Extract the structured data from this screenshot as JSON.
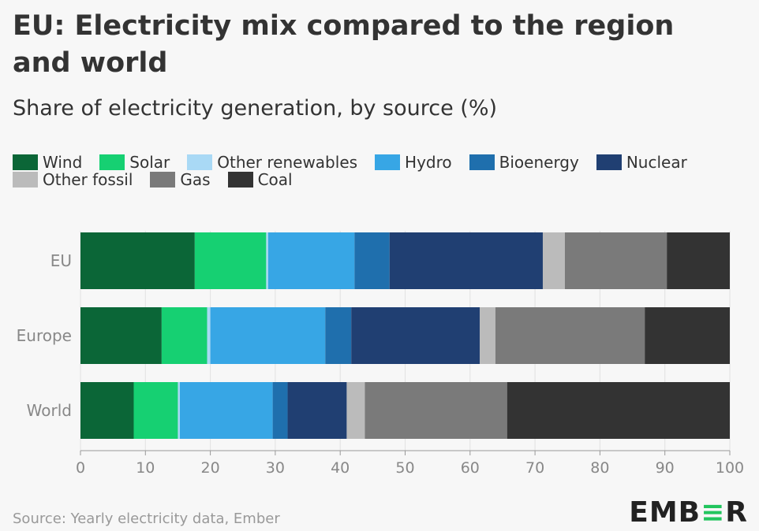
{
  "title": "EU: Electricity mix compared to the region and world",
  "subtitle": "Share of electricity generation, by source (%)",
  "source": "Source: Yearly electricity data, Ember",
  "logo": {
    "pre": "EMB",
    "accent": "≡",
    "post": "R"
  },
  "chart_data": {
    "type": "bar",
    "orientation": "horizontal",
    "stacked": true,
    "categories": [
      "EU",
      "Europe",
      "World"
    ],
    "series": [
      {
        "name": "Wind",
        "color": "#0b6637",
        "values": [
          17.6,
          12.5,
          8.2
        ]
      },
      {
        "name": "Solar",
        "color": "#16d072",
        "values": [
          11.0,
          7.0,
          6.8
        ]
      },
      {
        "name": "Other renewables",
        "color": "#a9d9f5",
        "values": [
          0.3,
          0.5,
          0.3
        ]
      },
      {
        "name": "Hydro",
        "color": "#37a6e5",
        "values": [
          13.3,
          17.7,
          14.3
        ]
      },
      {
        "name": "Bioenergy",
        "color": "#1f6fad",
        "values": [
          5.4,
          4.0,
          2.3
        ]
      },
      {
        "name": "Nuclear",
        "color": "#203f72",
        "values": [
          23.6,
          19.8,
          9.1
        ]
      },
      {
        "name": "Other fossil",
        "color": "#bbbbbb",
        "values": [
          3.4,
          2.4,
          2.8
        ]
      },
      {
        "name": "Gas",
        "color": "#7a7a7a",
        "values": [
          15.7,
          23.0,
          21.9
        ]
      },
      {
        "name": "Coal",
        "color": "#333333",
        "values": [
          9.7,
          13.1,
          34.3
        ]
      }
    ],
    "xlim": [
      0,
      100
    ],
    "xticks": [
      0,
      10,
      20,
      30,
      40,
      50,
      60,
      70,
      80,
      90,
      100
    ],
    "grid": true,
    "legend": "top"
  }
}
